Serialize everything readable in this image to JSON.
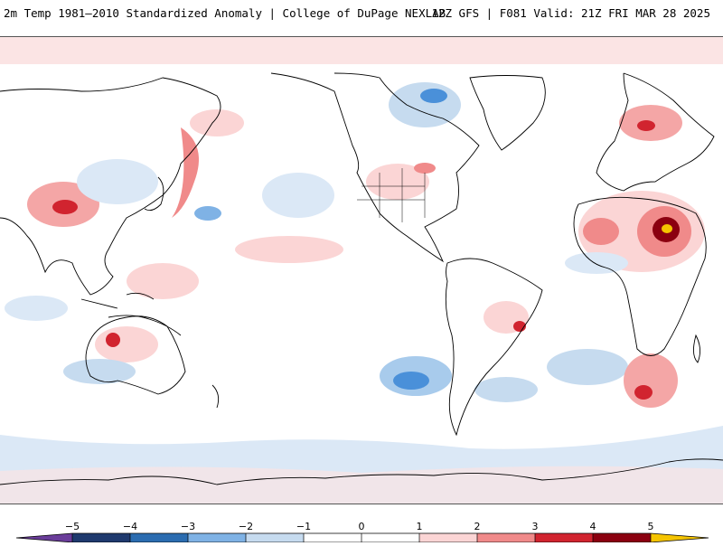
{
  "header": {
    "title": "2m Temp 1981–2010 Standardized Anomaly | College of DuPage NEXLAB",
    "run_info": "12Z GFS | F081 Valid: 21Z FRI MAR 28 2025"
  },
  "colorbar": {
    "ticks": [
      "−5",
      "−4",
      "−3",
      "−2",
      "−1",
      "0",
      "1",
      "2",
      "3",
      "4",
      "5"
    ],
    "colors": {
      "lt_neg5": "#6a3d9a",
      "neg5_neg4": "#1f3a6e",
      "neg4_neg3": "#2b6cb0",
      "neg3_neg2": "#4a90d9",
      "neg2_neg1": "#c6dbef",
      "neg1_0": "#ffffff",
      "zero_1": "#ffffff",
      "one_2": "#fbd5d5",
      "two_3": "#f08a8a",
      "three_4": "#d1242f",
      "four_5": "#8b0010",
      "gt_5": "#f5c400"
    }
  },
  "map": {
    "projection": "equirectangular",
    "center_longitude": "180",
    "coastline_color": "#000000"
  }
}
